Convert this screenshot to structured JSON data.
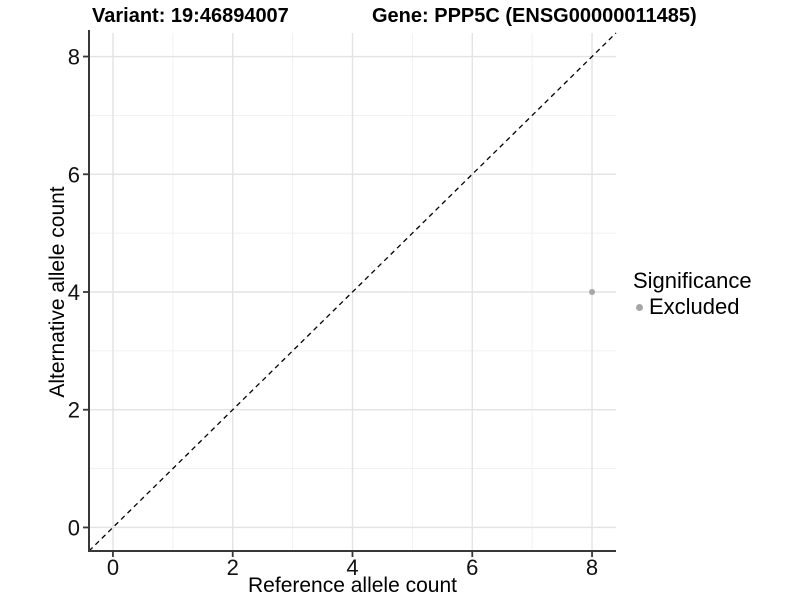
{
  "chart_data": {
    "type": "scatter",
    "titles": {
      "left": "Variant: 19:46894007",
      "right": "Gene: PPP5C (ENSG00000011485)"
    },
    "xlabel": "Reference allele count",
    "ylabel": "Alternative allele count",
    "xlim": [
      -0.4,
      8.4
    ],
    "ylim": [
      -0.4,
      8.4
    ],
    "x_ticks": [
      0,
      2,
      4,
      6,
      8
    ],
    "y_ticks": [
      0,
      2,
      4,
      6,
      8
    ],
    "x_minor_ticks": [
      1,
      3,
      5,
      7
    ],
    "y_minor_ticks": [
      1,
      3,
      5,
      7
    ],
    "grid": "major+minor",
    "points": [
      {
        "x": 8,
        "y": 4,
        "significance": "Excluded"
      }
    ],
    "reference_line": {
      "type": "identity y=x",
      "style": "dashed",
      "color": "#000000"
    },
    "legend": {
      "title": "Significance",
      "position": "right",
      "items": [
        {
          "label": "Excluded",
          "color": "#a6a6a6"
        }
      ]
    },
    "colors": {
      "background": "#ffffff",
      "grid_major": "#e3e3e3",
      "grid_minor": "#f1f1f1",
      "axis_line": "#383838",
      "tick_label": "#111111",
      "point": "#a6a6a6",
      "title_text": "#000000"
    }
  }
}
